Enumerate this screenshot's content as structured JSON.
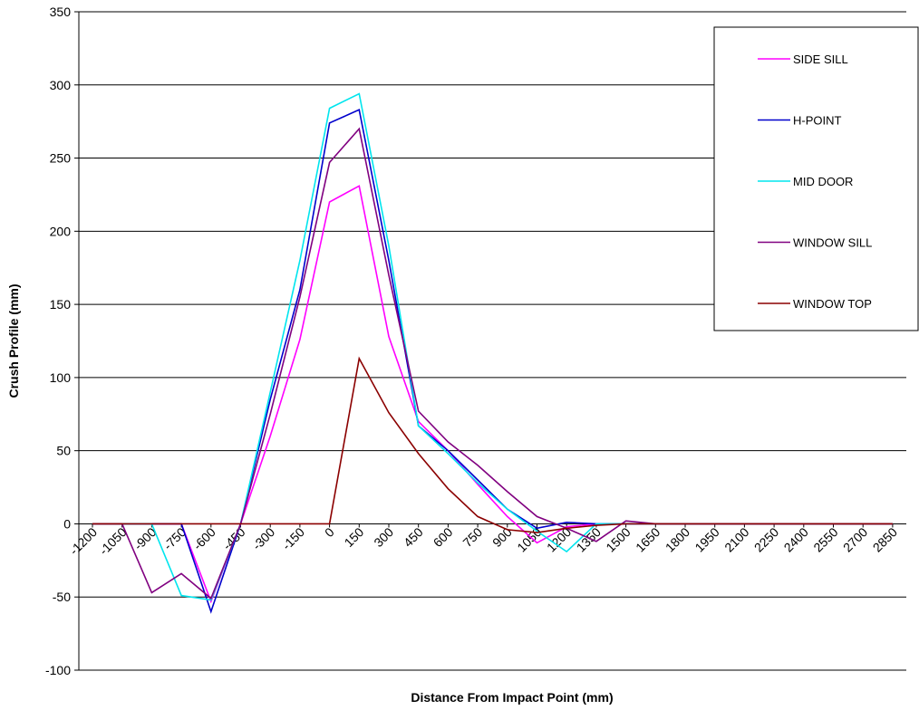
{
  "chart_data": {
    "type": "line",
    "xlabel": "Distance From Impact Point (mm)",
    "ylabel": "Crush Profile (mm)",
    "ylim": [
      -100,
      350
    ],
    "yticks": [
      -100,
      -50,
      0,
      50,
      100,
      150,
      200,
      250,
      300,
      350
    ],
    "grid": "horizontal",
    "legend_position": "top-right",
    "x": [
      -1200,
      -1050,
      -900,
      -750,
      -600,
      -450,
      -300,
      -150,
      0,
      150,
      300,
      450,
      600,
      750,
      900,
      1050,
      1200,
      1350,
      1500,
      1650,
      1800,
      1950,
      2100,
      2250,
      2400,
      2550,
      2700,
      2850
    ],
    "series": [
      {
        "name": "SIDE SILL",
        "color": "#ff00ff",
        "values": [
          0,
          0,
          0,
          0,
          -53,
          0,
          60,
          126,
          220,
          231,
          128,
          70,
          50,
          27,
          5,
          -13,
          -2,
          0,
          0,
          0,
          0,
          0,
          0,
          0,
          0,
          0,
          0,
          0
        ]
      },
      {
        "name": "H-POINT",
        "color": "#0000cc",
        "values": [
          0,
          0,
          0,
          0,
          -60,
          0,
          85,
          160,
          274,
          283,
          180,
          67,
          50,
          30,
          10,
          -3,
          1,
          0,
          0,
          0,
          0,
          0,
          0,
          0,
          0,
          0,
          0,
          0
        ]
      },
      {
        "name": "MID DOOR",
        "color": "#00e5ee",
        "values": [
          0,
          0,
          0,
          -49,
          -52,
          0,
          90,
          180,
          284,
          294,
          190,
          67,
          48,
          28,
          10,
          -5,
          -19,
          0,
          0,
          0,
          0,
          0,
          0,
          0,
          0,
          0,
          0,
          0
        ]
      },
      {
        "name": "WINDOW SILL",
        "color": "#800080",
        "values": [
          0,
          0,
          -47,
          -34,
          -51,
          0,
          75,
          155,
          247,
          270,
          170,
          77,
          56,
          40,
          22,
          5,
          -3,
          -12,
          2,
          0,
          0,
          0,
          0,
          0,
          0,
          0,
          0,
          0
        ]
      },
      {
        "name": "WINDOW TOP",
        "color": "#8b0000",
        "values": [
          0,
          0,
          0,
          0,
          0,
          0,
          0,
          0,
          0,
          113,
          76,
          48,
          24,
          5,
          -4,
          -6,
          -3,
          -1,
          0,
          0,
          0,
          0,
          0,
          0,
          0,
          0,
          0,
          0
        ]
      }
    ]
  }
}
